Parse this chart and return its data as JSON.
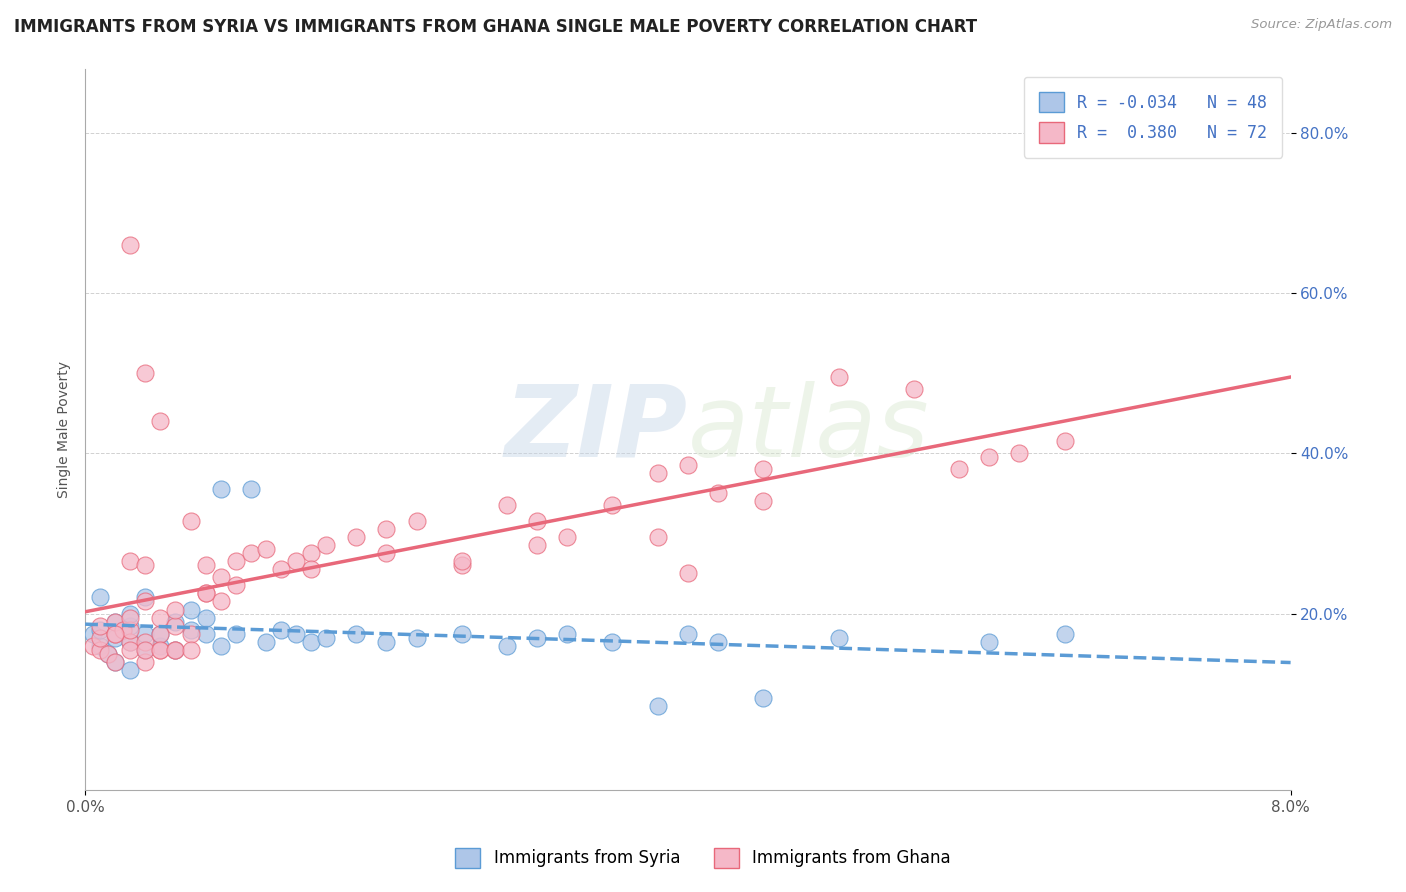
{
  "title": "IMMIGRANTS FROM SYRIA VS IMMIGRANTS FROM GHANA SINGLE MALE POVERTY CORRELATION CHART",
  "source": "Source: ZipAtlas.com",
  "ylabel": "Single Male Poverty",
  "xlim": [
    0.0,
    0.08
  ],
  "ylim": [
    -0.02,
    0.88
  ],
  "yticks": [
    0.2,
    0.4,
    0.6,
    0.8
  ],
  "ytick_labels": [
    "20.0%",
    "40.0%",
    "60.0%",
    "80.0%"
  ],
  "xticks": [
    0.0,
    0.08
  ],
  "xtick_labels": [
    "0.0%",
    "8.0%"
  ],
  "syria_R": -0.034,
  "syria_N": 48,
  "ghana_R": 0.38,
  "ghana_N": 72,
  "syria_color": "#aec6e8",
  "ghana_color": "#f5b8c8",
  "syria_line_color": "#5b9bd5",
  "ghana_line_color": "#e8687a",
  "background_color": "#ffffff",
  "title_fontsize": 12,
  "axis_label_fontsize": 10,
  "tick_fontsize": 11,
  "syria_x": [
    0.0005,
    0.001,
    0.001,
    0.001,
    0.0015,
    0.002,
    0.002,
    0.002,
    0.0025,
    0.003,
    0.003,
    0.003,
    0.003,
    0.004,
    0.004,
    0.004,
    0.005,
    0.005,
    0.006,
    0.006,
    0.007,
    0.007,
    0.008,
    0.008,
    0.009,
    0.009,
    0.01,
    0.011,
    0.012,
    0.013,
    0.014,
    0.015,
    0.016,
    0.018,
    0.02,
    0.022,
    0.025,
    0.028,
    0.03,
    0.032,
    0.035,
    0.038,
    0.04,
    0.042,
    0.045,
    0.05,
    0.06,
    0.065
  ],
  "syria_y": [
    0.175,
    0.16,
    0.18,
    0.22,
    0.15,
    0.14,
    0.17,
    0.19,
    0.18,
    0.13,
    0.165,
    0.185,
    0.2,
    0.155,
    0.175,
    0.22,
    0.16,
    0.175,
    0.19,
    0.155,
    0.18,
    0.205,
    0.175,
    0.195,
    0.16,
    0.355,
    0.175,
    0.355,
    0.165,
    0.18,
    0.175,
    0.165,
    0.17,
    0.175,
    0.165,
    0.17,
    0.175,
    0.16,
    0.17,
    0.175,
    0.165,
    0.085,
    0.175,
    0.165,
    0.095,
    0.17,
    0.165,
    0.175
  ],
  "ghana_x": [
    0.0005,
    0.001,
    0.001,
    0.001,
    0.0015,
    0.002,
    0.002,
    0.002,
    0.0025,
    0.003,
    0.003,
    0.003,
    0.004,
    0.004,
    0.004,
    0.005,
    0.005,
    0.005,
    0.006,
    0.006,
    0.007,
    0.007,
    0.008,
    0.008,
    0.009,
    0.009,
    0.01,
    0.011,
    0.012,
    0.013,
    0.014,
    0.015,
    0.016,
    0.018,
    0.02,
    0.022,
    0.025,
    0.028,
    0.03,
    0.032,
    0.035,
    0.038,
    0.04,
    0.042,
    0.045,
    0.05,
    0.055,
    0.058,
    0.06,
    0.062,
    0.065,
    0.002,
    0.003,
    0.004,
    0.006,
    0.008,
    0.01,
    0.015,
    0.02,
    0.025,
    0.03,
    0.038,
    0.045,
    0.003,
    0.004,
    0.005,
    0.003,
    0.004,
    0.005,
    0.006,
    0.007,
    0.04
  ],
  "ghana_y": [
    0.16,
    0.155,
    0.17,
    0.185,
    0.15,
    0.14,
    0.175,
    0.19,
    0.18,
    0.165,
    0.18,
    0.195,
    0.14,
    0.165,
    0.215,
    0.155,
    0.175,
    0.195,
    0.185,
    0.155,
    0.175,
    0.315,
    0.225,
    0.26,
    0.215,
    0.245,
    0.265,
    0.275,
    0.28,
    0.255,
    0.265,
    0.275,
    0.285,
    0.295,
    0.305,
    0.315,
    0.26,
    0.335,
    0.315,
    0.295,
    0.335,
    0.375,
    0.385,
    0.35,
    0.38,
    0.495,
    0.48,
    0.38,
    0.395,
    0.4,
    0.415,
    0.175,
    0.265,
    0.26,
    0.205,
    0.225,
    0.235,
    0.255,
    0.275,
    0.265,
    0.285,
    0.295,
    0.34,
    0.66,
    0.5,
    0.44,
    0.155,
    0.155,
    0.155,
    0.155,
    0.155,
    0.25
  ]
}
